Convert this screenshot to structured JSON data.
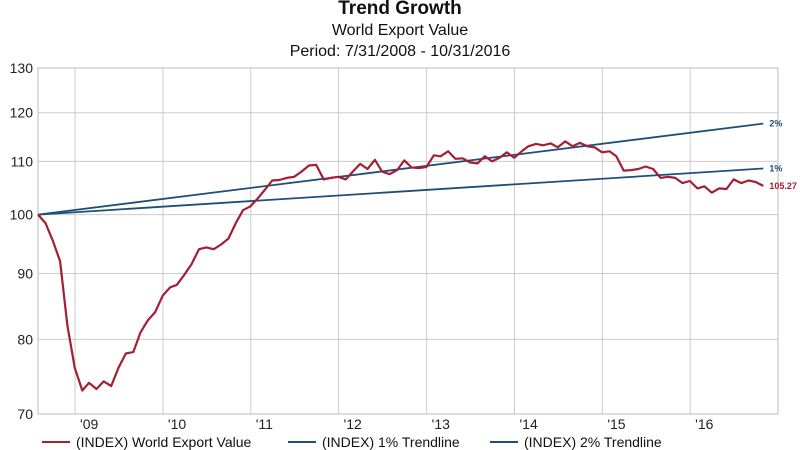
{
  "chart_data": {
    "type": "line",
    "title": "Trend Growth",
    "subtitle": "World Export Value",
    "period": "Period: 7/31/2008 - 10/31/2016",
    "ylim": [
      70,
      130
    ],
    "y_scale": "log",
    "y_ticks": [
      "130",
      "120",
      "110",
      "100",
      "90",
      "80",
      "70"
    ],
    "y_tick_values": [
      130,
      120,
      110,
      100,
      90,
      80,
      70
    ],
    "x_tick_labels": [
      "'09",
      "'10",
      "'11",
      "'12",
      "'13",
      "'14",
      "'15",
      "'16"
    ],
    "x_tick_dates": [
      "2009-01-01",
      "2010-01-01",
      "2011-01-01",
      "2012-01-01",
      "2013-01-01",
      "2014-01-01",
      "2015-01-01",
      "2016-01-01"
    ],
    "x_range": [
      "2008-07-31",
      "2016-12-31"
    ],
    "grid": true,
    "legend_position": "bottom",
    "series": [
      {
        "name": "(INDEX) World Export Value",
        "color": "#a31f34",
        "end_label": "105.27",
        "points": [
          [
            "2008-07-31",
            100.0
          ],
          [
            "2008-08-31",
            98.5
          ],
          [
            "2008-09-30",
            95.5
          ],
          [
            "2008-10-31",
            92.0
          ],
          [
            "2008-11-30",
            82.0
          ],
          [
            "2008-12-31",
            76.0
          ],
          [
            "2009-01-31",
            73.0
          ],
          [
            "2009-02-28",
            74.0
          ],
          [
            "2009-03-31",
            73.2
          ],
          [
            "2009-04-30",
            74.2
          ],
          [
            "2009-05-31",
            73.6
          ],
          [
            "2009-06-30",
            76.0
          ],
          [
            "2009-07-31",
            78.0
          ],
          [
            "2009-08-31",
            78.2
          ],
          [
            "2009-09-30",
            81.0
          ],
          [
            "2009-10-31",
            82.8
          ],
          [
            "2009-11-30",
            84.0
          ],
          [
            "2009-12-31",
            86.5
          ],
          [
            "2010-01-31",
            87.8
          ],
          [
            "2010-02-28",
            88.2
          ],
          [
            "2010-03-31",
            89.8
          ],
          [
            "2010-04-30",
            91.5
          ],
          [
            "2010-05-31",
            94.0
          ],
          [
            "2010-06-30",
            94.3
          ],
          [
            "2010-07-31",
            94.0
          ],
          [
            "2010-08-31",
            94.8
          ],
          [
            "2010-09-30",
            95.8
          ],
          [
            "2010-10-31",
            98.5
          ],
          [
            "2010-11-30",
            100.8
          ],
          [
            "2010-12-31",
            101.5
          ],
          [
            "2011-01-31",
            103.0
          ],
          [
            "2011-02-28",
            104.5
          ],
          [
            "2011-03-31",
            106.3
          ],
          [
            "2011-04-30",
            106.4
          ],
          [
            "2011-05-31",
            106.8
          ],
          [
            "2011-06-30",
            107.0
          ],
          [
            "2011-07-31",
            108.0
          ],
          [
            "2011-08-31",
            109.2
          ],
          [
            "2011-09-30",
            109.3
          ],
          [
            "2011-10-31",
            106.5
          ],
          [
            "2011-11-30",
            106.8
          ],
          [
            "2011-12-31",
            107.0
          ],
          [
            "2012-01-31",
            106.5
          ],
          [
            "2012-02-29",
            108.0
          ],
          [
            "2012-03-31",
            109.5
          ],
          [
            "2012-04-30",
            108.5
          ],
          [
            "2012-05-31",
            110.3
          ],
          [
            "2012-06-30",
            108.0
          ],
          [
            "2012-07-31",
            107.5
          ],
          [
            "2012-08-31",
            108.3
          ],
          [
            "2012-09-30",
            110.2
          ],
          [
            "2012-10-31",
            108.8
          ],
          [
            "2012-11-30",
            108.7
          ],
          [
            "2012-12-31",
            108.9
          ],
          [
            "2013-01-31",
            111.2
          ],
          [
            "2013-02-28",
            111.0
          ],
          [
            "2013-03-31",
            112.0
          ],
          [
            "2013-04-30",
            110.5
          ],
          [
            "2013-05-31",
            110.6
          ],
          [
            "2013-06-30",
            109.8
          ],
          [
            "2013-07-31",
            109.6
          ],
          [
            "2013-08-31",
            111.0
          ],
          [
            "2013-09-30",
            110.0
          ],
          [
            "2013-10-31",
            110.7
          ],
          [
            "2013-11-30",
            111.8
          ],
          [
            "2013-12-31",
            110.7
          ],
          [
            "2014-01-31",
            112.0
          ],
          [
            "2014-02-28",
            113.0
          ],
          [
            "2014-03-31",
            113.5
          ],
          [
            "2014-04-30",
            113.2
          ],
          [
            "2014-05-31",
            113.6
          ],
          [
            "2014-06-30",
            112.8
          ],
          [
            "2014-07-31",
            114.0
          ],
          [
            "2014-08-31",
            113.0
          ],
          [
            "2014-09-30",
            113.7
          ],
          [
            "2014-10-31",
            113.0
          ],
          [
            "2014-11-30",
            112.8
          ],
          [
            "2014-12-31",
            111.8
          ],
          [
            "2015-01-31",
            112.0
          ],
          [
            "2015-02-28",
            111.0
          ],
          [
            "2015-03-31",
            108.2
          ],
          [
            "2015-04-30",
            108.3
          ],
          [
            "2015-05-31",
            108.5
          ],
          [
            "2015-06-30",
            109.0
          ],
          [
            "2015-07-31",
            108.5
          ],
          [
            "2015-08-31",
            106.8
          ],
          [
            "2015-09-30",
            107.0
          ],
          [
            "2015-10-31",
            106.8
          ],
          [
            "2015-11-30",
            105.8
          ],
          [
            "2015-12-31",
            106.2
          ],
          [
            "2016-01-31",
            104.8
          ],
          [
            "2016-02-29",
            105.2
          ],
          [
            "2016-03-31",
            104.0
          ],
          [
            "2016-04-30",
            104.8
          ],
          [
            "2016-05-31",
            104.7
          ],
          [
            "2016-06-30",
            106.5
          ],
          [
            "2016-07-31",
            105.8
          ],
          [
            "2016-08-31",
            106.3
          ],
          [
            "2016-09-30",
            106.0
          ],
          [
            "2016-10-31",
            105.27
          ]
        ]
      },
      {
        "name": "(INDEX) 1% Trendline",
        "color": "#1f4e79",
        "end_label": "1%",
        "points": [
          [
            "2008-07-31",
            100.0
          ],
          [
            "2016-10-31",
            108.6
          ]
        ]
      },
      {
        "name": "(INDEX) 2% Trendline",
        "color": "#1f4e79",
        "end_label": "2%",
        "points": [
          [
            "2008-07-31",
            100.0
          ],
          [
            "2016-10-31",
            117.7
          ]
        ]
      }
    ]
  }
}
